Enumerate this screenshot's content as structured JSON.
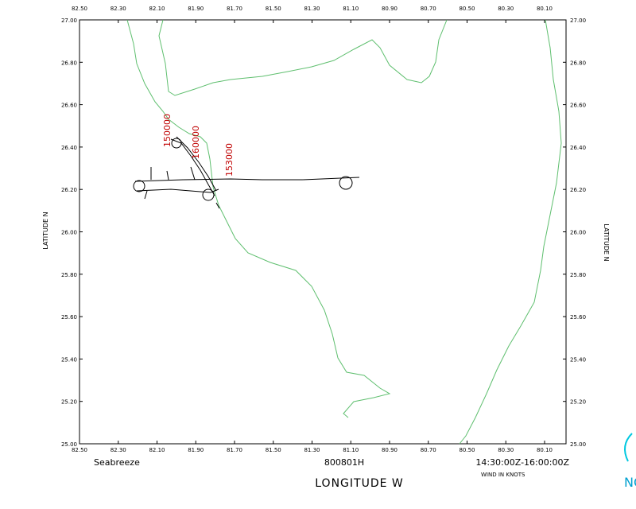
{
  "plot": {
    "top_ticks": [
      "82.50",
      "82.30",
      "82.10",
      "81.90",
      "81.70",
      "81.50",
      "81.30",
      "81.10",
      "80.90",
      "80.70",
      "80.50",
      "80.30",
      "80.10"
    ],
    "bottom_ticks": [
      "82.50",
      "82.30",
      "82.10",
      "81.90",
      "81.70",
      "81.50",
      "81.30",
      "81.10",
      "80.90",
      "80.70",
      "80.50",
      "80.30",
      "80.10"
    ],
    "left_ticks": [
      "27.00",
      "26.80",
      "26.60",
      "26.40",
      "26.20",
      "26.00",
      "25.80",
      "25.60",
      "25.40",
      "25.20",
      "25.00"
    ],
    "right_ticks": [
      "27.00",
      "26.80",
      "26.60",
      "26.40",
      "26.20",
      "26.00",
      "25.80",
      "25.60",
      "25.40",
      "25.20",
      "25.00"
    ],
    "y_label": "LATITUDE  N",
    "x_label": "LONGITUDE  W",
    "project": "Seabreeze",
    "flight": "800801H",
    "time_range": "14:30:00Z-16:00:00Z",
    "wind_note": "WIND IN KNOTS",
    "time_labels": [
      "150000",
      "160000",
      "153000"
    ]
  },
  "logo": "NO"
}
